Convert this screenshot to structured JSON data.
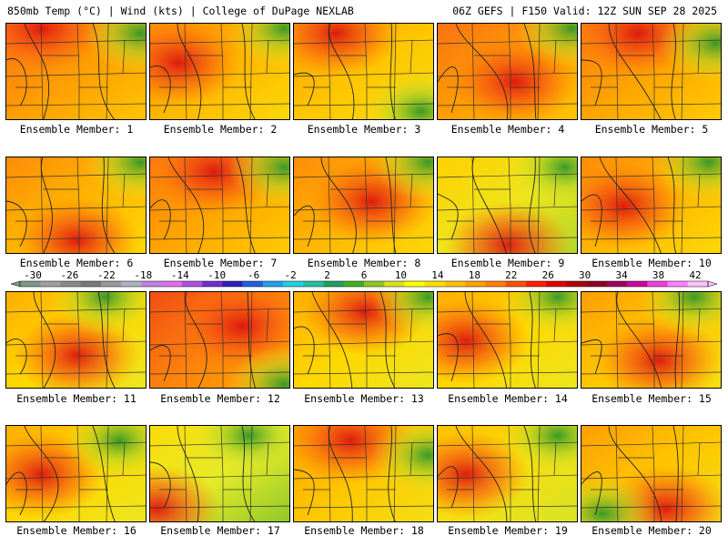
{
  "header": {
    "left": "850mb Temp (°C) | Wind (kts) | College of DuPage NEXLAB",
    "right": "06Z GEFS | F150 Valid: 12Z SUN SEP 28 2025"
  },
  "members": [
    {
      "label": "Ensemble Member: 1",
      "hot": [
        0.25,
        0.05
      ],
      "cool": [
        0.95,
        0.1
      ],
      "warm": 0.62
    },
    {
      "label": "Ensemble Member: 2",
      "hot": [
        0.2,
        0.4
      ],
      "cool": [
        0.95,
        0.05
      ],
      "warm": 0.55
    },
    {
      "label": "Ensemble Member: 3",
      "hot": [
        0.3,
        0.1
      ],
      "cool": [
        0.9,
        0.9
      ],
      "warm": 0.5
    },
    {
      "label": "Ensemble Member: 4",
      "hot": [
        0.55,
        0.6
      ],
      "cool": [
        0.95,
        0.05
      ],
      "warm": 0.62
    },
    {
      "label": "Ensemble Member: 5",
      "hot": [
        0.4,
        0.1
      ],
      "cool": [
        0.95,
        0.2
      ],
      "warm": 0.6
    },
    {
      "label": "Ensemble Member: 6",
      "hot": [
        0.5,
        0.85
      ],
      "cool": [
        0.95,
        0.05
      ],
      "warm": 0.55
    },
    {
      "label": "Ensemble Member: 7",
      "hot": [
        0.45,
        0.15
      ],
      "cool": [
        0.95,
        0.1
      ],
      "warm": 0.6
    },
    {
      "label": "Ensemble Member: 8",
      "hot": [
        0.55,
        0.45
      ],
      "cool": [
        0.95,
        0.05
      ],
      "warm": 0.55
    },
    {
      "label": "Ensemble Member: 9",
      "hot": [
        0.5,
        0.9
      ],
      "cool": [
        0.9,
        0.1
      ],
      "warm": 0.35
    },
    {
      "label": "Ensemble Member: 10",
      "hot": [
        0.3,
        0.5
      ],
      "cool": [
        0.9,
        0.05
      ],
      "warm": 0.55
    },
    {
      "label": "Ensemble Member: 11",
      "hot": [
        0.5,
        0.65
      ],
      "cool": [
        0.7,
        0.05
      ],
      "warm": 0.45
    },
    {
      "label": "Ensemble Member: 12",
      "hot": [
        0.65,
        0.35
      ],
      "cool": [
        0.95,
        0.95
      ],
      "warm": 0.7
    },
    {
      "label": "Ensemble Member: 13",
      "hot": [
        0.5,
        0.2
      ],
      "cool": [
        0.95,
        0.05
      ],
      "warm": 0.45
    },
    {
      "label": "Ensemble Member: 14",
      "hot": [
        0.2,
        0.5
      ],
      "cool": [
        0.85,
        0.05
      ],
      "warm": 0.45
    },
    {
      "label": "Ensemble Member: 15",
      "hot": [
        0.55,
        0.7
      ],
      "cool": [
        0.8,
        0.05
      ],
      "warm": 0.5
    },
    {
      "label": "Ensemble Member: 16",
      "hot": [
        0.25,
        0.5
      ],
      "cool": [
        0.8,
        0.15
      ],
      "warm": 0.45
    },
    {
      "label": "Ensemble Member: 17",
      "hot": [
        0.05,
        0.85
      ],
      "cool": [
        0.7,
        0.1
      ],
      "warm": 0.3
    },
    {
      "label": "Ensemble Member: 18",
      "hot": [
        0.4,
        0.15
      ],
      "cool": [
        0.95,
        0.3
      ],
      "warm": 0.5
    },
    {
      "label": "Ensemble Member: 19",
      "hot": [
        0.2,
        0.5
      ],
      "cool": [
        0.85,
        0.1
      ],
      "warm": 0.4
    },
    {
      "label": "Ensemble Member: 20",
      "hot": [
        0.6,
        0.85
      ],
      "cool": [
        0.15,
        0.9
      ],
      "warm": 0.5
    }
  ],
  "colorbar": {
    "ticks": [
      "-30",
      "-26",
      "-22",
      "-18",
      "-14",
      "-10",
      "-6",
      "-2",
      "2",
      "6",
      "10",
      "14",
      "18",
      "22",
      "26",
      "30",
      "34",
      "38",
      "42"
    ],
    "colors": [
      "#7b9a84",
      "#a0a0a0",
      "#8a8a8a",
      "#7a7a7a",
      "#9a9a9a",
      "#b0b0c0",
      "#c080e0",
      "#e070f0",
      "#b050e0",
      "#7030d0",
      "#3020c0",
      "#2060e0",
      "#20a0f0",
      "#20d0e0",
      "#20c0a0",
      "#20a060",
      "#40b020",
      "#90c820",
      "#d8e020",
      "#ffff00",
      "#ffe000",
      "#ffc000",
      "#ffa000",
      "#ff8000",
      "#ff5000",
      "#ff2000",
      "#e00000",
      "#b00000",
      "#900020",
      "#a00060",
      "#d000a0",
      "#f040e0",
      "#ff80ff",
      "#ffc0ff"
    ]
  }
}
